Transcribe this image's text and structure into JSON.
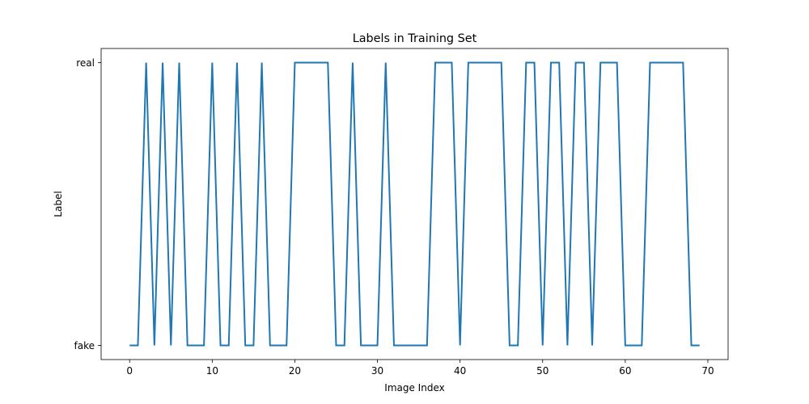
{
  "chart_data": {
    "type": "line",
    "title": "Labels in Training Set",
    "xlabel": "Image Index",
    "ylabel": "Label",
    "categories": [
      "fake",
      "real"
    ],
    "xlim": [
      -3.45,
      72.45
    ],
    "ylim": [
      -0.05,
      1.05
    ],
    "x_ticks": [
      0,
      10,
      20,
      30,
      40,
      50,
      60,
      70
    ],
    "x_tick_labels": [
      "0",
      "10",
      "20",
      "30",
      "40",
      "50",
      "60",
      "70"
    ],
    "y_ticks": [
      0,
      1
    ],
    "y_tick_labels": [
      "fake",
      "real"
    ],
    "grid": false,
    "legend": "none",
    "color": "#1f77b4",
    "x": [
      0,
      1,
      2,
      3,
      4,
      5,
      6,
      7,
      8,
      9,
      10,
      11,
      12,
      13,
      14,
      15,
      16,
      17,
      18,
      19,
      20,
      21,
      22,
      23,
      24,
      25,
      26,
      27,
      28,
      29,
      30,
      31,
      32,
      33,
      34,
      35,
      36,
      37,
      38,
      39,
      40,
      41,
      42,
      43,
      44,
      45,
      46,
      47,
      48,
      49,
      50,
      51,
      52,
      53,
      54,
      55,
      56,
      57,
      58,
      59,
      60,
      61,
      62,
      63,
      64,
      65,
      66,
      67,
      68,
      69
    ],
    "series": [
      {
        "values": [
          0,
          0,
          1,
          0,
          1,
          0,
          1,
          0,
          0,
          0,
          1,
          0,
          0,
          1,
          0,
          0,
          1,
          0,
          0,
          0,
          1,
          1,
          1,
          1,
          1,
          0,
          0,
          1,
          0,
          0,
          0,
          1,
          0,
          0,
          0,
          0,
          0,
          1,
          1,
          1,
          0,
          1,
          1,
          1,
          1,
          1,
          0,
          0,
          1,
          1,
          0,
          1,
          1,
          0,
          1,
          1,
          0,
          1,
          1,
          1,
          0,
          0,
          0,
          1,
          1,
          1,
          1,
          1,
          0,
          0
        ]
      }
    ]
  }
}
